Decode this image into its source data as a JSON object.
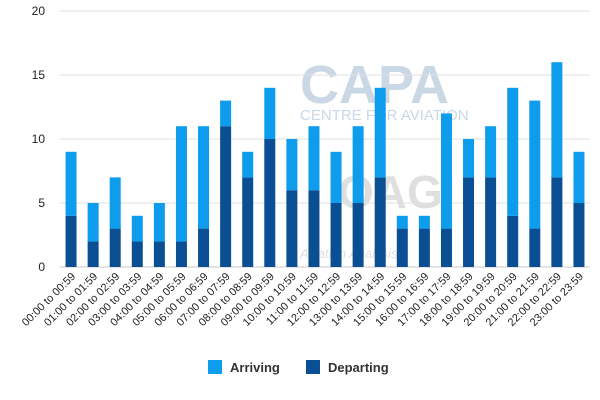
{
  "chart_data": {
    "type": "bar",
    "stacked": true,
    "title": "",
    "xlabel": "",
    "ylabel": "",
    "ylim": [
      0,
      20
    ],
    "yticks": [
      0,
      5,
      10,
      15,
      20
    ],
    "grid": true,
    "legend_position": "bottom",
    "categories": [
      "00:00 to 00:59",
      "01:00 to 01:59",
      "02:00 to 02:59",
      "03:00 to 03:59",
      "04:00 to 04:59",
      "05:00 to 05:59",
      "06:00 to 06:59",
      "07:00 to 07:59",
      "08:00 to 08:59",
      "09:00 to 09:59",
      "10:00 to 10:59",
      "11:00 to 11:59",
      "12:00 to 12:59",
      "13:00 to 13:59",
      "14:00 to 14:59",
      "15:00 to 15:59",
      "16:00 to 16:59",
      "17:00 to 17:59",
      "18:00 to 18:59",
      "19:00 to 19:59",
      "20:00 to 20:59",
      "21:00 to 21:59",
      "22:00 to 22:59",
      "23:00 to 23:59"
    ],
    "series": [
      {
        "name": "Departing",
        "color": "#0a4f94",
        "values": [
          4,
          2,
          3,
          2,
          2,
          2,
          3,
          11,
          7,
          10,
          6,
          6,
          5,
          5,
          7,
          3,
          3,
          3,
          7,
          7,
          4,
          3,
          7,
          5
        ]
      },
      {
        "name": "Arriving",
        "color": "#0e9cec",
        "values": [
          5,
          3,
          4,
          2,
          3,
          9,
          8,
          2,
          2,
          4,
          4,
          5,
          4,
          6,
          7,
          1,
          1,
          9,
          3,
          4,
          10,
          10,
          9,
          4
        ]
      }
    ]
  },
  "watermarks": {
    "capa_logo": "CAPA",
    "capa_sub": "CENTRE FOR AVIATION",
    "oag_logo": "OAG",
    "oag_sub": "Aviation Analysis"
  }
}
